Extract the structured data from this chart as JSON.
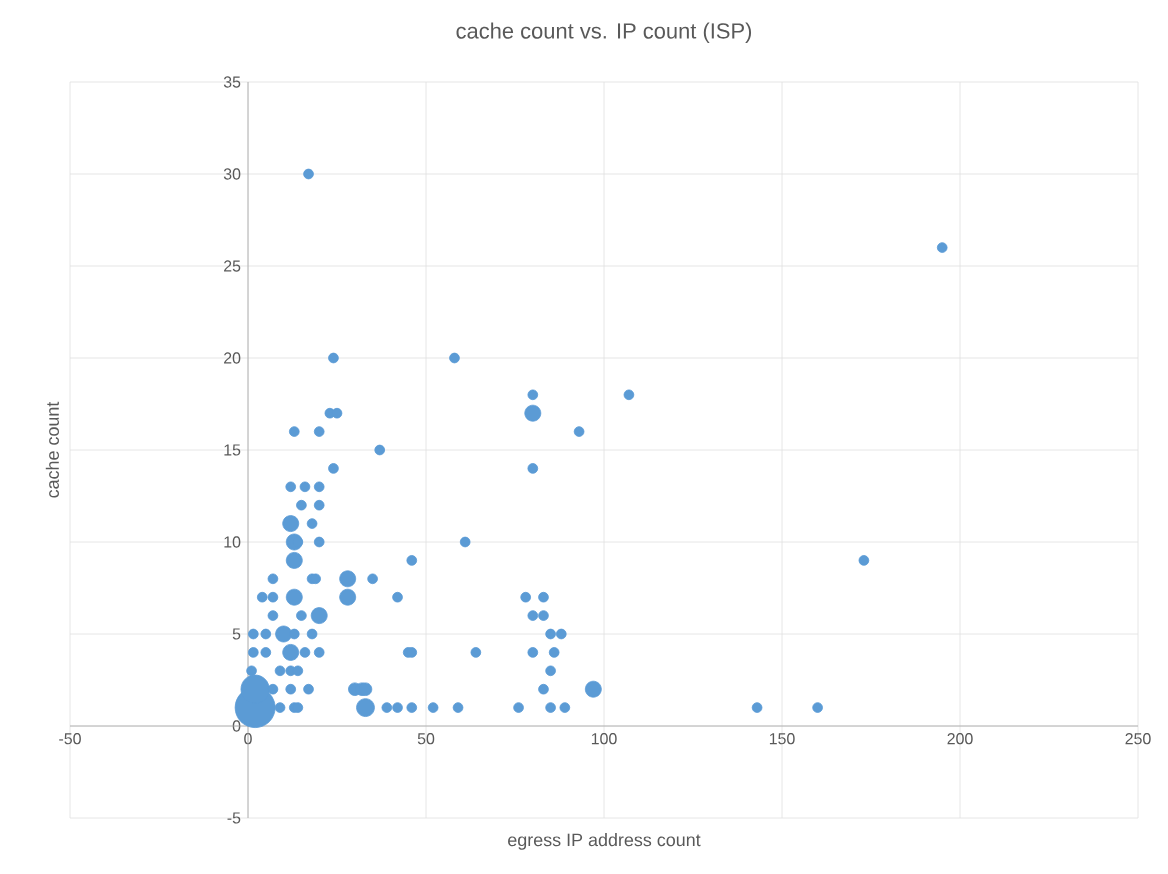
{
  "chart_data": {
    "type": "bubble",
    "title": "cache count vs. IP count (ISP)",
    "xlabel": "egress IP address count",
    "ylabel": "cache count",
    "xlim": [
      -50,
      250
    ],
    "ylim": [
      -5,
      35
    ],
    "xticks": [
      -50,
      0,
      50,
      100,
      150,
      200,
      250
    ],
    "yticks": [
      -5,
      0,
      5,
      10,
      15,
      20,
      25,
      30,
      35
    ],
    "grid": true,
    "series": [
      {
        "color": "#5b9bd5",
        "x": [
          2,
          2,
          1,
          17,
          24,
          58,
          80,
          107,
          195,
          23,
          25,
          80,
          13,
          20,
          93,
          37,
          24,
          80,
          12,
          16,
          20,
          15,
          20,
          12,
          18,
          13,
          14,
          20,
          61,
          13,
          46,
          173,
          7,
          18,
          19,
          28,
          35,
          4,
          7,
          13,
          28,
          42,
          78,
          83,
          7,
          15,
          20,
          80,
          83,
          1.5,
          5,
          10,
          13,
          18,
          85,
          88,
          1.5,
          5,
          12,
          16,
          20,
          45,
          46,
          64,
          80,
          86,
          9,
          12,
          14,
          85,
          7,
          12,
          17,
          30,
          32,
          33,
          83,
          97,
          9,
          13,
          14,
          33,
          39,
          42,
          46,
          52,
          59,
          76,
          85,
          89,
          143,
          160
        ],
        "values": [
          1,
          2,
          3,
          30,
          20,
          20,
          18,
          18,
          26,
          17,
          17,
          17,
          16,
          16,
          16,
          15,
          14,
          14,
          13,
          13,
          13,
          12,
          12,
          11,
          11,
          10,
          10,
          10,
          10,
          9,
          9,
          9,
          8,
          8,
          8,
          8,
          8,
          7,
          7,
          7,
          7,
          7,
          7,
          7,
          6,
          6,
          6,
          6,
          6,
          5,
          5,
          5,
          5,
          5,
          5,
          5,
          4,
          4,
          4,
          4,
          4,
          4,
          4,
          4,
          4,
          4,
          3,
          3,
          3,
          3,
          2,
          2,
          2,
          2,
          2,
          2,
          2,
          2,
          1,
          1,
          1,
          1,
          1,
          1,
          1,
          1,
          1,
          1,
          1,
          1,
          1,
          1
        ],
        "sizes": [
          1,
          0.5,
          0.06,
          0.06,
          0.06,
          0.06,
          0.06,
          0.06,
          0.06,
          0.06,
          0.06,
          0.16,
          0.06,
          0.06,
          0.06,
          0.06,
          0.06,
          0.06,
          0.06,
          0.06,
          0.06,
          0.06,
          0.06,
          0.16,
          0.06,
          0.16,
          0.06,
          0.06,
          0.06,
          0.16,
          0.06,
          0.06,
          0.06,
          0.06,
          0.06,
          0.16,
          0.06,
          0.06,
          0.06,
          0.16,
          0.16,
          0.06,
          0.06,
          0.06,
          0.06,
          0.06,
          0.16,
          0.06,
          0.06,
          0.06,
          0.06,
          0.16,
          0.06,
          0.06,
          0.06,
          0.06,
          0.06,
          0.06,
          0.16,
          0.06,
          0.06,
          0.06,
          0.06,
          0.06,
          0.06,
          0.06,
          0.06,
          0.06,
          0.06,
          0.06,
          0.06,
          0.06,
          0.06,
          0.1,
          0.1,
          0.1,
          0.06,
          0.16,
          0.06,
          0.06,
          0.06,
          0.2,
          0.06,
          0.06,
          0.06,
          0.06,
          0.06,
          0.06,
          0.06,
          0.06,
          0.06,
          0.06
        ]
      }
    ]
  }
}
